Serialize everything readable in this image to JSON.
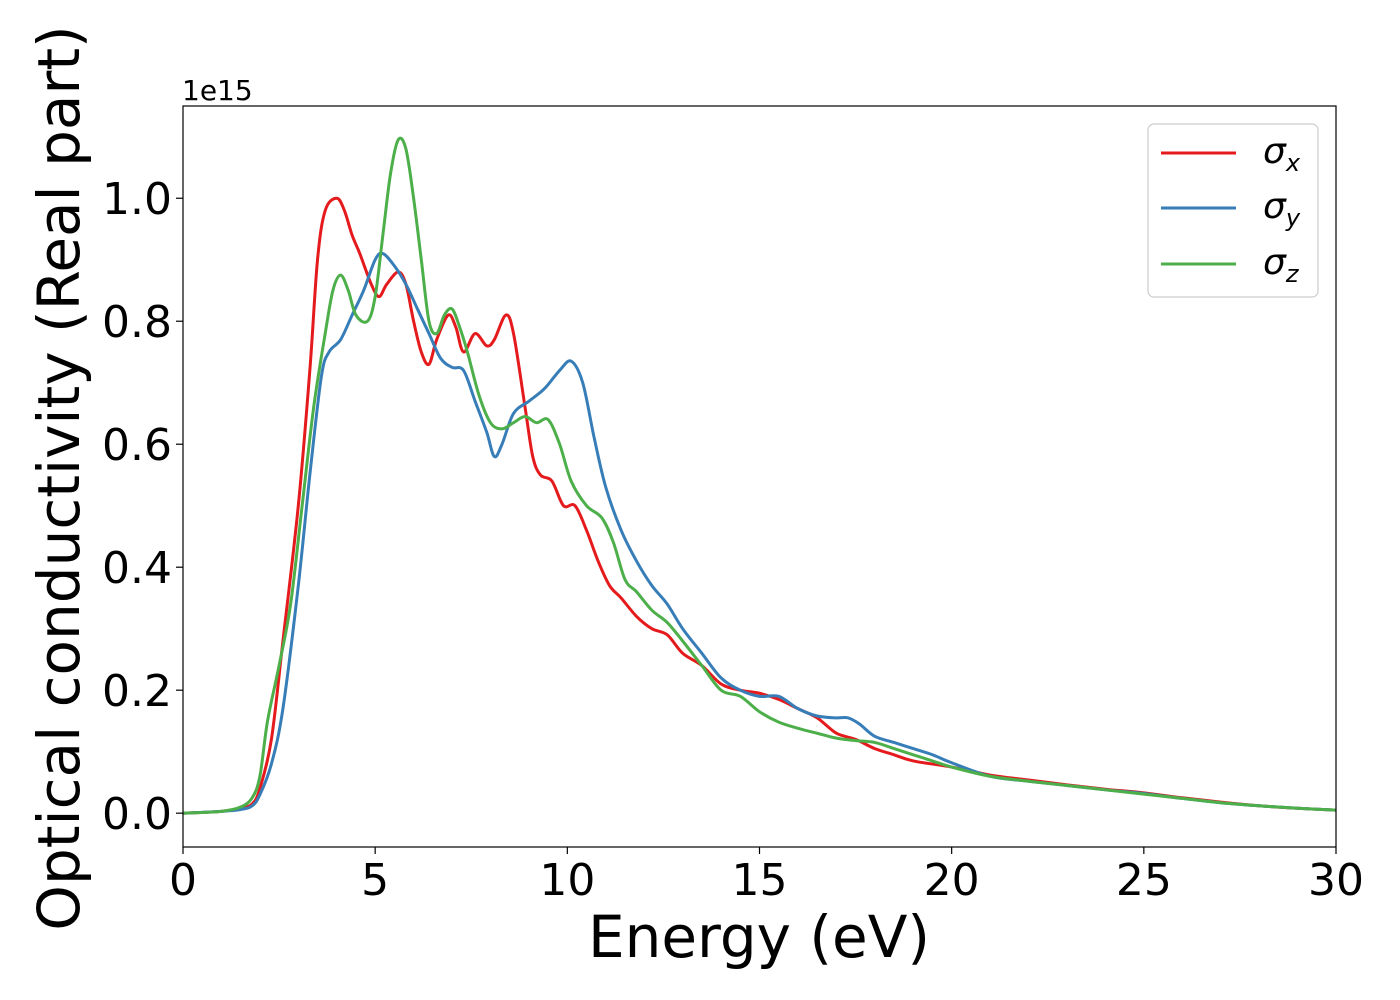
{
  "chart_data": {
    "type": "line",
    "title": "",
    "xlabel": "Energy (eV)",
    "ylabel": "Optical conductivity (Real part)",
    "y_offset_label": "1e15",
    "xlim": [
      0,
      30
    ],
    "ylim": [
      -0.055,
      1.15
    ],
    "y_scale": "x 1e15",
    "x_ticks": [
      0,
      5,
      10,
      15,
      20,
      25,
      30
    ],
    "x_tick_labels": [
      "0",
      "5",
      "10",
      "15",
      "20",
      "25",
      "30"
    ],
    "y_ticks": [
      0.0,
      0.2,
      0.4,
      0.6,
      0.8,
      1.0
    ],
    "y_tick_labels": [
      "0.0",
      "0.2",
      "0.4",
      "0.6",
      "0.8",
      "1.0"
    ],
    "grid": false,
    "legend_position": "top-right",
    "series": [
      {
        "name": "σx",
        "symbol": "σ",
        "subscript": "x",
        "color": "#e41a1c",
        "points": [
          [
            0,
            0
          ],
          [
            1,
            0.003
          ],
          [
            1.5,
            0.008
          ],
          [
            1.8,
            0.015
          ],
          [
            2,
            0.04
          ],
          [
            2.3,
            0.12
          ],
          [
            2.6,
            0.28
          ],
          [
            3.0,
            0.5
          ],
          [
            3.3,
            0.72
          ],
          [
            3.5,
            0.9
          ],
          [
            3.7,
            0.98
          ],
          [
            4.0,
            1.0
          ],
          [
            4.2,
            0.98
          ],
          [
            4.4,
            0.94
          ],
          [
            4.6,
            0.91
          ],
          [
            4.9,
            0.86
          ],
          [
            5.1,
            0.84
          ],
          [
            5.3,
            0.86
          ],
          [
            5.6,
            0.88
          ],
          [
            5.8,
            0.86
          ],
          [
            6.0,
            0.8
          ],
          [
            6.2,
            0.75
          ],
          [
            6.4,
            0.73
          ],
          [
            6.6,
            0.77
          ],
          [
            6.9,
            0.81
          ],
          [
            7.1,
            0.79
          ],
          [
            7.3,
            0.75
          ],
          [
            7.6,
            0.78
          ],
          [
            7.9,
            0.76
          ],
          [
            8.1,
            0.77
          ],
          [
            8.4,
            0.81
          ],
          [
            8.6,
            0.78
          ],
          [
            8.9,
            0.66
          ],
          [
            9.1,
            0.58
          ],
          [
            9.3,
            0.55
          ],
          [
            9.6,
            0.54
          ],
          [
            9.9,
            0.5
          ],
          [
            10.2,
            0.5
          ],
          [
            10.5,
            0.46
          ],
          [
            10.8,
            0.41
          ],
          [
            11.1,
            0.37
          ],
          [
            11.4,
            0.35
          ],
          [
            11.8,
            0.32
          ],
          [
            12.2,
            0.3
          ],
          [
            12.6,
            0.29
          ],
          [
            13.0,
            0.26
          ],
          [
            13.5,
            0.24
          ],
          [
            14.0,
            0.21
          ],
          [
            14.5,
            0.2
          ],
          [
            15.0,
            0.195
          ],
          [
            15.5,
            0.185
          ],
          [
            16.0,
            0.17
          ],
          [
            16.5,
            0.155
          ],
          [
            17.0,
            0.13
          ],
          [
            17.5,
            0.12
          ],
          [
            18.0,
            0.105
          ],
          [
            18.5,
            0.095
          ],
          [
            19.0,
            0.085
          ],
          [
            20.0,
            0.075
          ],
          [
            21.0,
            0.062
          ],
          [
            22.0,
            0.054
          ],
          [
            23.0,
            0.046
          ],
          [
            24.0,
            0.039
          ],
          [
            25.0,
            0.033
          ],
          [
            26.0,
            0.025
          ],
          [
            27.0,
            0.018
          ],
          [
            28.0,
            0.012
          ],
          [
            29.0,
            0.008
          ],
          [
            30.0,
            0.005
          ]
        ]
      },
      {
        "name": "σy",
        "symbol": "σ",
        "subscript": "y",
        "color": "#377eb8",
        "points": [
          [
            0,
            0
          ],
          [
            1,
            0.003
          ],
          [
            1.5,
            0.006
          ],
          [
            1.8,
            0.012
          ],
          [
            2,
            0.03
          ],
          [
            2.3,
            0.08
          ],
          [
            2.6,
            0.17
          ],
          [
            3.0,
            0.37
          ],
          [
            3.3,
            0.55
          ],
          [
            3.6,
            0.71
          ],
          [
            3.8,
            0.75
          ],
          [
            4.1,
            0.77
          ],
          [
            4.4,
            0.81
          ],
          [
            4.7,
            0.85
          ],
          [
            5.0,
            0.9
          ],
          [
            5.2,
            0.91
          ],
          [
            5.5,
            0.89
          ],
          [
            5.8,
            0.86
          ],
          [
            6.1,
            0.82
          ],
          [
            6.4,
            0.78
          ],
          [
            6.7,
            0.74
          ],
          [
            7.0,
            0.725
          ],
          [
            7.3,
            0.72
          ],
          [
            7.6,
            0.67
          ],
          [
            7.9,
            0.62
          ],
          [
            8.1,
            0.58
          ],
          [
            8.3,
            0.6
          ],
          [
            8.6,
            0.65
          ],
          [
            9.0,
            0.67
          ],
          [
            9.4,
            0.69
          ],
          [
            9.8,
            0.72
          ],
          [
            10.1,
            0.735
          ],
          [
            10.4,
            0.7
          ],
          [
            10.7,
            0.61
          ],
          [
            11.0,
            0.53
          ],
          [
            11.4,
            0.46
          ],
          [
            11.8,
            0.41
          ],
          [
            12.2,
            0.37
          ],
          [
            12.6,
            0.34
          ],
          [
            13.0,
            0.3
          ],
          [
            13.5,
            0.26
          ],
          [
            14.0,
            0.22
          ],
          [
            14.5,
            0.2
          ],
          [
            15.0,
            0.19
          ],
          [
            15.5,
            0.19
          ],
          [
            16.0,
            0.17
          ],
          [
            16.5,
            0.158
          ],
          [
            17.0,
            0.155
          ],
          [
            17.3,
            0.155
          ],
          [
            17.6,
            0.145
          ],
          [
            18.0,
            0.125
          ],
          [
            18.5,
            0.115
          ],
          [
            19.0,
            0.105
          ],
          [
            19.5,
            0.095
          ],
          [
            20.0,
            0.082
          ],
          [
            21.0,
            0.06
          ],
          [
            22.0,
            0.052
          ],
          [
            23.0,
            0.045
          ],
          [
            24.0,
            0.038
          ],
          [
            25.0,
            0.032
          ],
          [
            26.0,
            0.024
          ],
          [
            27.0,
            0.017
          ],
          [
            28.0,
            0.012
          ],
          [
            29.0,
            0.008
          ],
          [
            30.0,
            0.005
          ]
        ]
      },
      {
        "name": "σz",
        "symbol": "σ",
        "subscript": "z",
        "color": "#4daf4a",
        "points": [
          [
            0,
            0
          ],
          [
            1,
            0.003
          ],
          [
            1.5,
            0.01
          ],
          [
            1.8,
            0.025
          ],
          [
            2,
            0.06
          ],
          [
            2.2,
            0.15
          ],
          [
            2.5,
            0.24
          ],
          [
            2.8,
            0.34
          ],
          [
            3.1,
            0.5
          ],
          [
            3.4,
            0.66
          ],
          [
            3.7,
            0.78
          ],
          [
            3.9,
            0.85
          ],
          [
            4.1,
            0.875
          ],
          [
            4.3,
            0.85
          ],
          [
            4.5,
            0.81
          ],
          [
            4.8,
            0.8
          ],
          [
            5.0,
            0.84
          ],
          [
            5.2,
            0.94
          ],
          [
            5.4,
            1.04
          ],
          [
            5.6,
            1.095
          ],
          [
            5.8,
            1.08
          ],
          [
            6.0,
            1.0
          ],
          [
            6.2,
            0.9
          ],
          [
            6.4,
            0.8
          ],
          [
            6.6,
            0.78
          ],
          [
            6.8,
            0.81
          ],
          [
            7.0,
            0.82
          ],
          [
            7.2,
            0.79
          ],
          [
            7.4,
            0.75
          ],
          [
            7.7,
            0.68
          ],
          [
            8.0,
            0.635
          ],
          [
            8.3,
            0.625
          ],
          [
            8.6,
            0.635
          ],
          [
            8.9,
            0.645
          ],
          [
            9.2,
            0.635
          ],
          [
            9.5,
            0.64
          ],
          [
            9.8,
            0.6
          ],
          [
            10.1,
            0.54
          ],
          [
            10.5,
            0.5
          ],
          [
            10.9,
            0.48
          ],
          [
            11.2,
            0.44
          ],
          [
            11.5,
            0.38
          ],
          [
            11.8,
            0.36
          ],
          [
            12.2,
            0.33
          ],
          [
            12.6,
            0.31
          ],
          [
            13.0,
            0.28
          ],
          [
            13.5,
            0.24
          ],
          [
            14.0,
            0.2
          ],
          [
            14.5,
            0.19
          ],
          [
            15.0,
            0.165
          ],
          [
            15.5,
            0.148
          ],
          [
            16.0,
            0.138
          ],
          [
            16.5,
            0.13
          ],
          [
            17.0,
            0.122
          ],
          [
            17.5,
            0.118
          ],
          [
            18.0,
            0.115
          ],
          [
            18.5,
            0.105
          ],
          [
            19.0,
            0.095
          ],
          [
            19.5,
            0.085
          ],
          [
            20.0,
            0.075
          ],
          [
            21.0,
            0.06
          ],
          [
            22.0,
            0.052
          ],
          [
            23.0,
            0.045
          ],
          [
            24.0,
            0.038
          ],
          [
            25.0,
            0.031
          ],
          [
            26.0,
            0.024
          ],
          [
            27.0,
            0.017
          ],
          [
            28.0,
            0.012
          ],
          [
            29.0,
            0.008
          ],
          [
            30.0,
            0.005
          ]
        ]
      }
    ]
  }
}
